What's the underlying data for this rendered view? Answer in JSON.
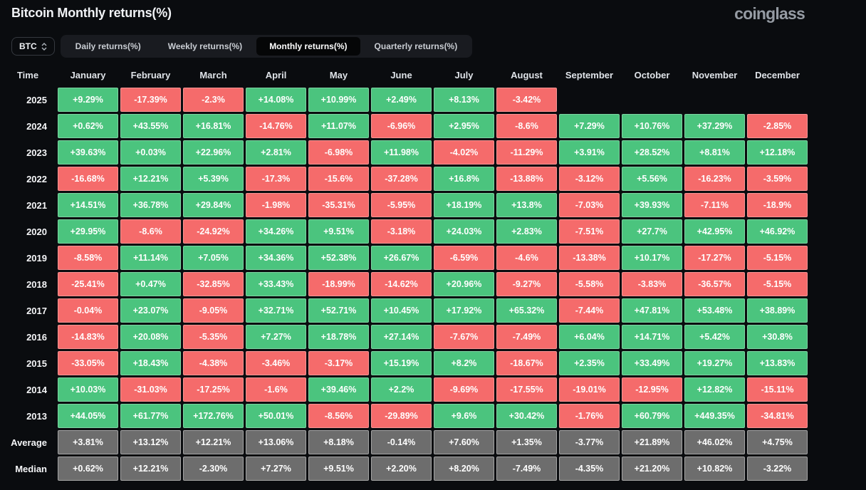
{
  "header": {
    "title": "Bitcoin Monthly returns(%)",
    "logo": "coinglass"
  },
  "controls": {
    "symbol": "BTC",
    "tabs": [
      {
        "label": "Daily returns(%)",
        "active": false
      },
      {
        "label": "Weekly returns(%)",
        "active": false
      },
      {
        "label": "Monthly returns(%)",
        "active": true
      },
      {
        "label": "Quarterly returns(%)",
        "active": false
      }
    ]
  },
  "chart_data": {
    "type": "heatmap",
    "title": "Bitcoin Monthly returns(%)",
    "colors": {
      "positive": "#4bc47e",
      "negative": "#f56b6b",
      "summary": "#6d6d6d",
      "background": "#0a0c0f"
    },
    "columns": [
      "Time",
      "January",
      "February",
      "March",
      "April",
      "May",
      "June",
      "July",
      "August",
      "September",
      "October",
      "November",
      "December"
    ],
    "rows": [
      {
        "label": "2025",
        "summary": false,
        "values": [
          "+9.29%",
          "-17.39%",
          "-2.3%",
          "+14.08%",
          "+10.99%",
          "+2.49%",
          "+8.13%",
          "-3.42%",
          null,
          null,
          null,
          null
        ]
      },
      {
        "label": "2024",
        "summary": false,
        "values": [
          "+0.62%",
          "+43.55%",
          "+16.81%",
          "-14.76%",
          "+11.07%",
          "-6.96%",
          "+2.95%",
          "-8.6%",
          "+7.29%",
          "+10.76%",
          "+37.29%",
          "-2.85%"
        ]
      },
      {
        "label": "2023",
        "summary": false,
        "values": [
          "+39.63%",
          "+0.03%",
          "+22.96%",
          "+2.81%",
          "-6.98%",
          "+11.98%",
          "-4.02%",
          "-11.29%",
          "+3.91%",
          "+28.52%",
          "+8.81%",
          "+12.18%"
        ]
      },
      {
        "label": "2022",
        "summary": false,
        "values": [
          "-16.68%",
          "+12.21%",
          "+5.39%",
          "-17.3%",
          "-15.6%",
          "-37.28%",
          "+16.8%",
          "-13.88%",
          "-3.12%",
          "+5.56%",
          "-16.23%",
          "-3.59%"
        ]
      },
      {
        "label": "2021",
        "summary": false,
        "values": [
          "+14.51%",
          "+36.78%",
          "+29.84%",
          "-1.98%",
          "-35.31%",
          "-5.95%",
          "+18.19%",
          "+13.8%",
          "-7.03%",
          "+39.93%",
          "-7.11%",
          "-18.9%"
        ]
      },
      {
        "label": "2020",
        "summary": false,
        "values": [
          "+29.95%",
          "-8.6%",
          "-24.92%",
          "+34.26%",
          "+9.51%",
          "-3.18%",
          "+24.03%",
          "+2.83%",
          "-7.51%",
          "+27.7%",
          "+42.95%",
          "+46.92%"
        ]
      },
      {
        "label": "2019",
        "summary": false,
        "values": [
          "-8.58%",
          "+11.14%",
          "+7.05%",
          "+34.36%",
          "+52.38%",
          "+26.67%",
          "-6.59%",
          "-4.6%",
          "-13.38%",
          "+10.17%",
          "-17.27%",
          "-5.15%"
        ]
      },
      {
        "label": "2018",
        "summary": false,
        "values": [
          "-25.41%",
          "+0.47%",
          "-32.85%",
          "+33.43%",
          "-18.99%",
          "-14.62%",
          "+20.96%",
          "-9.27%",
          "-5.58%",
          "-3.83%",
          "-36.57%",
          "-5.15%"
        ]
      },
      {
        "label": "2017",
        "summary": false,
        "values": [
          "-0.04%",
          "+23.07%",
          "-9.05%",
          "+32.71%",
          "+52.71%",
          "+10.45%",
          "+17.92%",
          "+65.32%",
          "-7.44%",
          "+47.81%",
          "+53.48%",
          "+38.89%"
        ]
      },
      {
        "label": "2016",
        "summary": false,
        "values": [
          "-14.83%",
          "+20.08%",
          "-5.35%",
          "+7.27%",
          "+18.78%",
          "+27.14%",
          "-7.67%",
          "-7.49%",
          "+6.04%",
          "+14.71%",
          "+5.42%",
          "+30.8%"
        ]
      },
      {
        "label": "2015",
        "summary": false,
        "values": [
          "-33.05%",
          "+18.43%",
          "-4.38%",
          "-3.46%",
          "-3.17%",
          "+15.19%",
          "+8.2%",
          "-18.67%",
          "+2.35%",
          "+33.49%",
          "+19.27%",
          "+13.83%"
        ]
      },
      {
        "label": "2014",
        "summary": false,
        "values": [
          "+10.03%",
          "-31.03%",
          "-17.25%",
          "-1.6%",
          "+39.46%",
          "+2.2%",
          "-9.69%",
          "-17.55%",
          "-19.01%",
          "-12.95%",
          "+12.82%",
          "-15.11%"
        ]
      },
      {
        "label": "2013",
        "summary": false,
        "values": [
          "+44.05%",
          "+61.77%",
          "+172.76%",
          "+50.01%",
          "-8.56%",
          "-29.89%",
          "+9.6%",
          "+30.42%",
          "-1.76%",
          "+60.79%",
          "+449.35%",
          "-34.81%"
        ]
      },
      {
        "label": "Average",
        "summary": true,
        "values": [
          "+3.81%",
          "+13.12%",
          "+12.21%",
          "+13.06%",
          "+8.18%",
          "-0.14%",
          "+7.60%",
          "+1.35%",
          "-3.77%",
          "+21.89%",
          "+46.02%",
          "+4.75%"
        ]
      },
      {
        "label": "Median",
        "summary": true,
        "values": [
          "+0.62%",
          "+12.21%",
          "-2.30%",
          "+7.27%",
          "+9.51%",
          "+2.20%",
          "+8.20%",
          "-7.49%",
          "-4.35%",
          "+21.20%",
          "+10.82%",
          "-3.22%"
        ]
      }
    ]
  }
}
